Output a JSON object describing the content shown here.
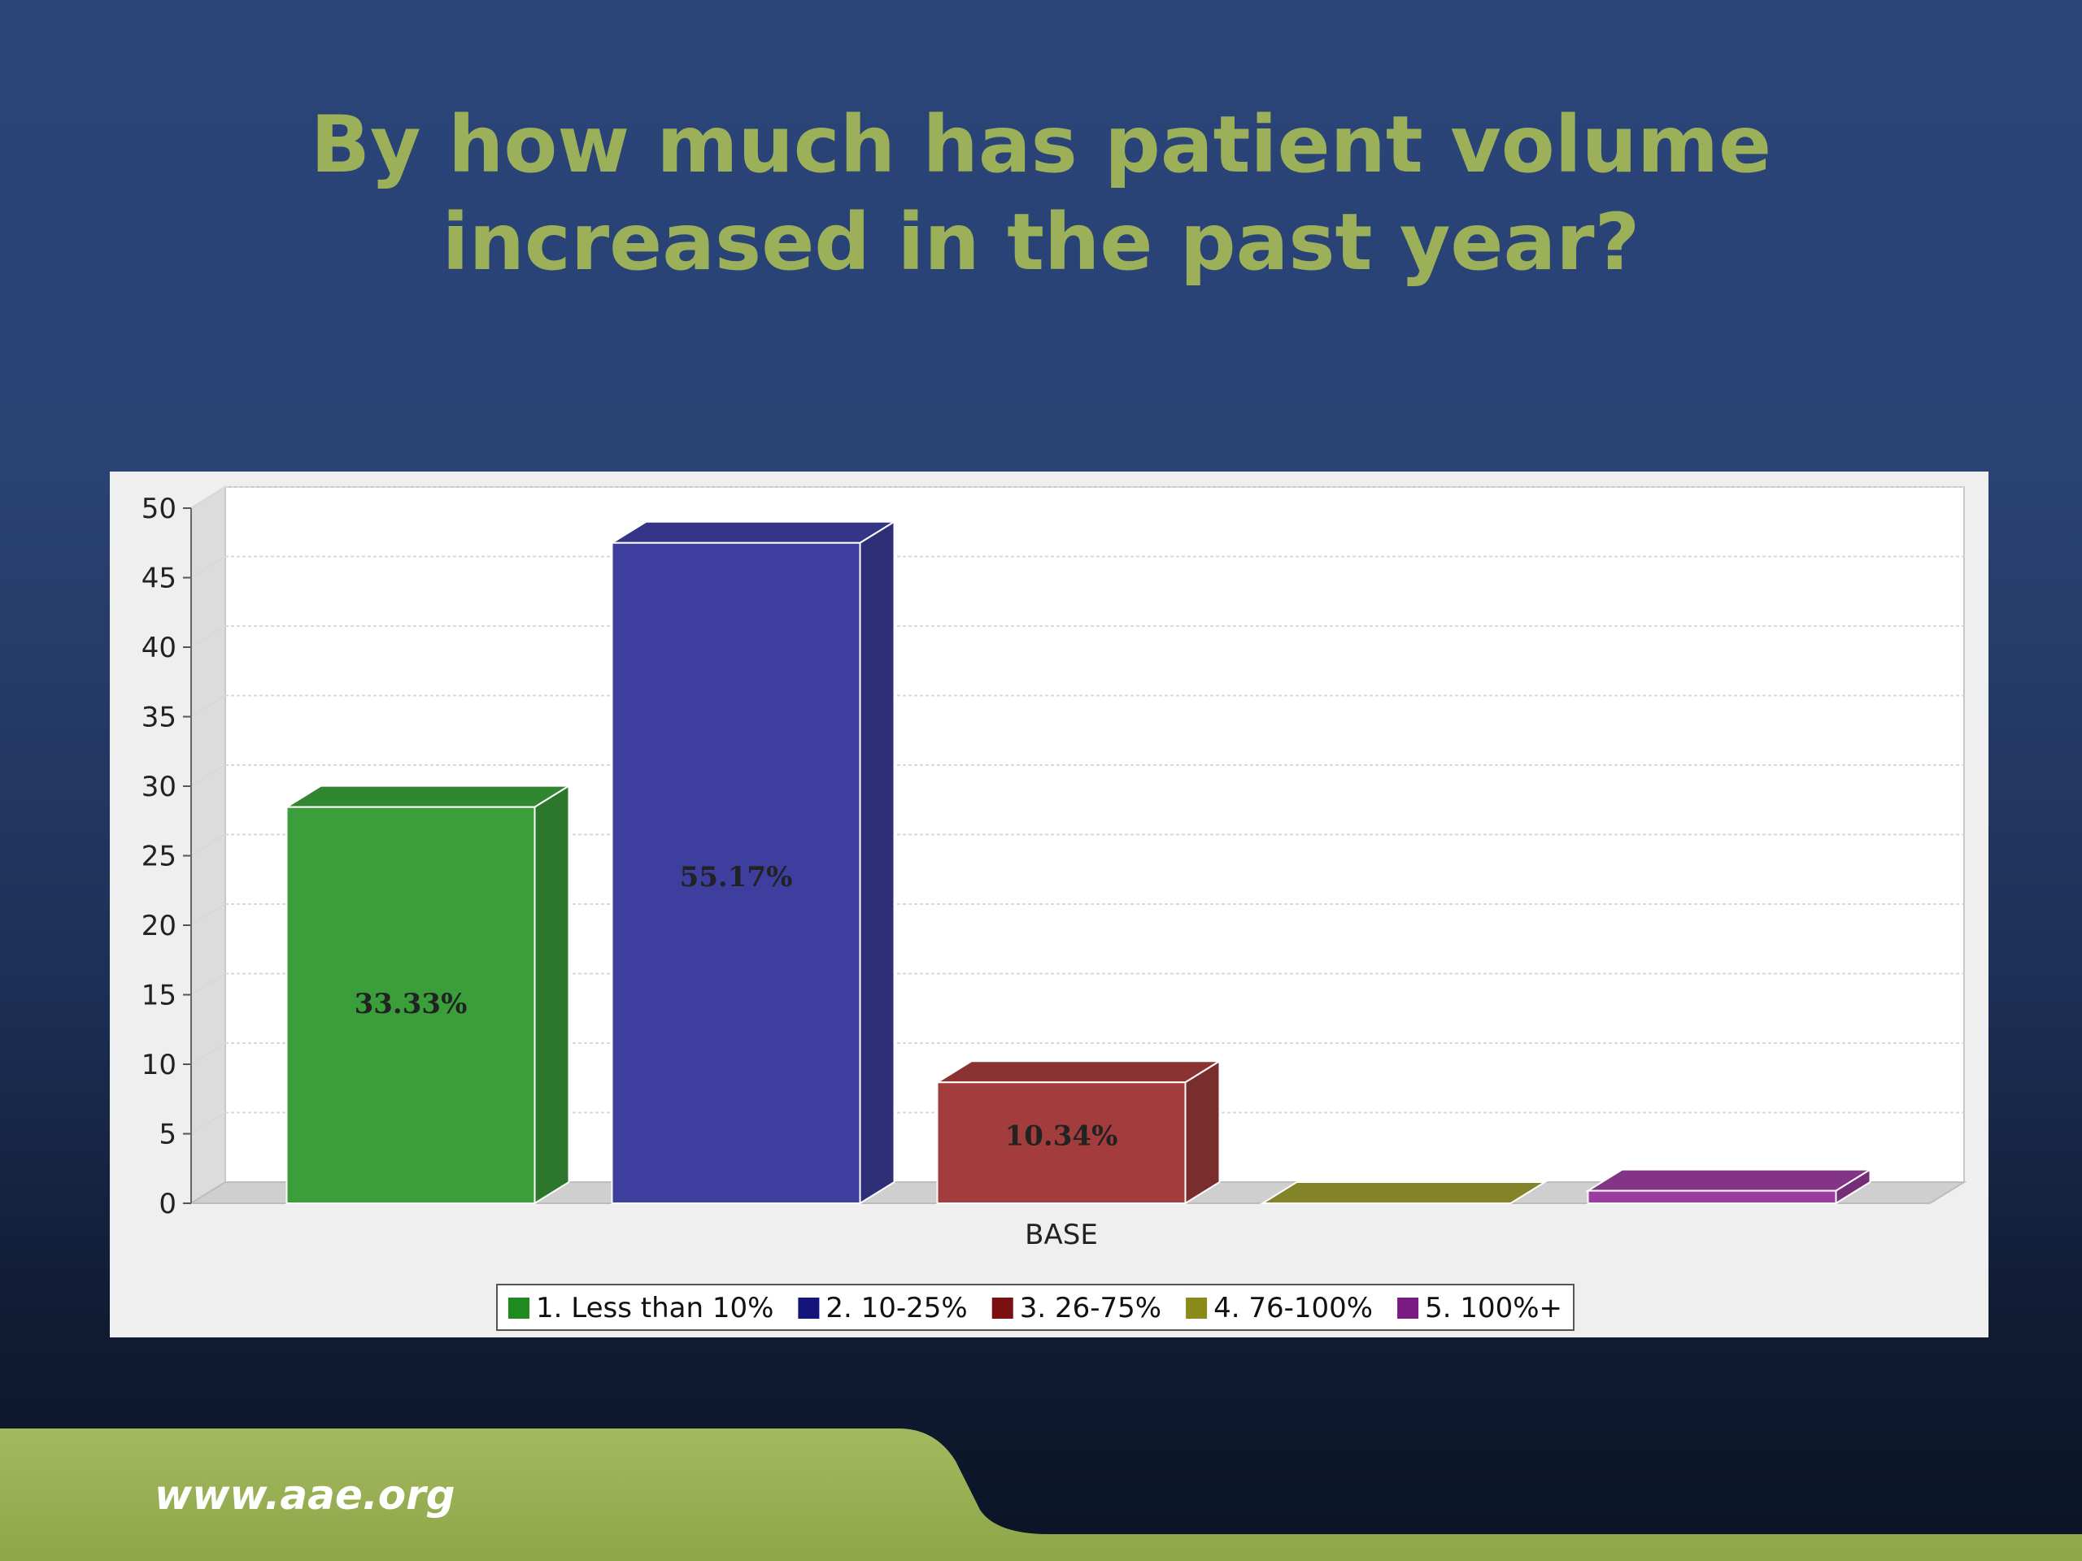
{
  "slide": {
    "title_lines": [
      "By how much has patient volume",
      "increased in the past year?"
    ],
    "footer_url": "www.aae.org",
    "accent_color": "#9bb058"
  },
  "chart_data": {
    "type": "bar",
    "categories": [
      "BASE"
    ],
    "xlabel": "BASE",
    "ylabel": "",
    "ylim": [
      0,
      50
    ],
    "yticks": [
      0,
      5,
      10,
      15,
      20,
      25,
      30,
      35,
      40,
      45,
      50
    ],
    "grid": true,
    "legend_position": "bottom",
    "series": [
      {
        "name": "1. Less than 10%",
        "value": 28.5,
        "label": "33.33%",
        "color": "#3a9e3a",
        "legend_color": "#1f8a1f"
      },
      {
        "name": "2. 10-25%",
        "value": 47.5,
        "label": "55.17%",
        "color": "#3d3e9e",
        "legend_color": "#14147a"
      },
      {
        "name": "3. 26-75%",
        "value": 8.7,
        "label": "10.34%",
        "color": "#a33c3c",
        "legend_color": "#7a1010"
      },
      {
        "name": "4. 76-100%",
        "value": 0,
        "label": "",
        "color": "#9a9a30",
        "legend_color": "#8a8a1a"
      },
      {
        "name": "5. 100%+",
        "value": 0.9,
        "label": "",
        "color": "#9a3d9e",
        "legend_color": "#7a1a80"
      }
    ]
  }
}
